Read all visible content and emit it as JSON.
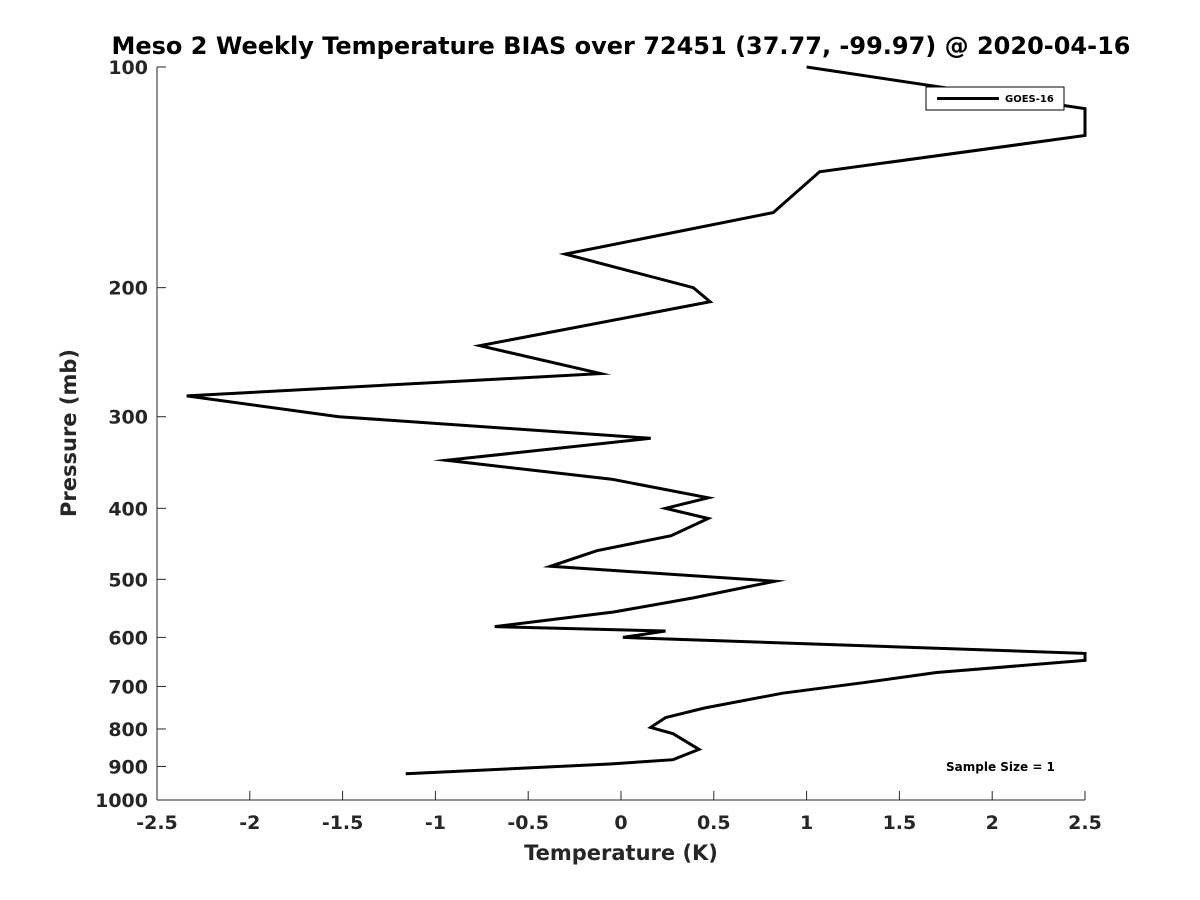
{
  "chart_data": {
    "type": "line",
    "title": "Meso 2 Weekly Temperature BIAS over 72451 (37.77, -99.97) @ 2020-04-16",
    "xlabel": "Temperature (K)",
    "ylabel": "Pressure (mb)",
    "xlim": [
      -2.5,
      2.5
    ],
    "ylim": [
      100,
      1000
    ],
    "y_scale": "log",
    "y_reversed": true,
    "grid": false,
    "x_ticks": [
      -2.5,
      -2,
      -1.5,
      -1,
      -0.5,
      0,
      0.5,
      1,
      1.5,
      2,
      2.5
    ],
    "x_tick_labels": [
      "-2.5",
      "-2",
      "-1.5",
      "-1",
      "-0.5",
      "0",
      "0.5",
      "1",
      "1.5",
      "2",
      "2.5"
    ],
    "y_ticks": [
      100,
      200,
      300,
      400,
      500,
      600,
      700,
      800,
      900,
      1000
    ],
    "y_tick_labels": [
      "100",
      "200",
      "300",
      "400",
      "500",
      "600",
      "700",
      "800",
      "900",
      "1000"
    ],
    "legend_position": "top-right",
    "annotation": "Sample Size = 1",
    "series": [
      {
        "name": "GOES-16",
        "color": "#000000",
        "points": [
          {
            "x": 1.0,
            "p": 100
          },
          {
            "x": 2.5,
            "p": 114
          },
          {
            "x": 2.5,
            "p": 124
          },
          {
            "x": 1.07,
            "p": 139
          },
          {
            "x": 0.82,
            "p": 158
          },
          {
            "x": -0.3,
            "p": 180
          },
          {
            "x": 0.39,
            "p": 200
          },
          {
            "x": 0.48,
            "p": 209
          },
          {
            "x": -0.76,
            "p": 240
          },
          {
            "x": -0.11,
            "p": 262
          },
          {
            "x": -2.34,
            "p": 281
          },
          {
            "x": -1.52,
            "p": 300
          },
          {
            "x": 0.16,
            "p": 321
          },
          {
            "x": -0.94,
            "p": 344
          },
          {
            "x": -0.05,
            "p": 365
          },
          {
            "x": 0.47,
            "p": 387
          },
          {
            "x": 0.24,
            "p": 400
          },
          {
            "x": 0.47,
            "p": 413
          },
          {
            "x": 0.27,
            "p": 436
          },
          {
            "x": -0.13,
            "p": 457
          },
          {
            "x": -0.38,
            "p": 480
          },
          {
            "x": 0.83,
            "p": 503
          },
          {
            "x": 0.39,
            "p": 530
          },
          {
            "x": -0.04,
            "p": 554
          },
          {
            "x": -0.68,
            "p": 580
          },
          {
            "x": 0.24,
            "p": 588
          },
          {
            "x": 0.01,
            "p": 600
          },
          {
            "x": 2.5,
            "p": 631
          },
          {
            "x": 2.5,
            "p": 645
          },
          {
            "x": 1.7,
            "p": 670
          },
          {
            "x": 1.3,
            "p": 692
          },
          {
            "x": 0.87,
            "p": 715
          },
          {
            "x": 0.45,
            "p": 749
          },
          {
            "x": 0.24,
            "p": 772
          },
          {
            "x": 0.16,
            "p": 796
          },
          {
            "x": 0.28,
            "p": 812
          },
          {
            "x": 0.42,
            "p": 853
          },
          {
            "x": 0.28,
            "p": 881
          },
          {
            "x": -0.06,
            "p": 893
          },
          {
            "x": -1.16,
            "p": 921
          }
        ]
      }
    ]
  }
}
